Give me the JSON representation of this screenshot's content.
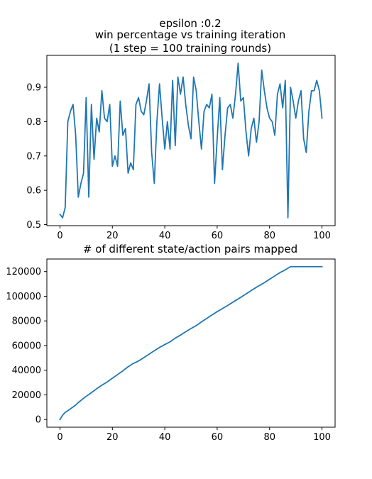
{
  "figure": {
    "title_lines": [
      "epsilon :0.2",
      "win percentage vs training iteration",
      "(1 step = 100 training rounds)"
    ]
  },
  "chart_data": [
    {
      "type": "line",
      "title": "win percentage vs training iteration",
      "xlabel": "",
      "ylabel": "",
      "xlim": [
        -5,
        105
      ],
      "ylim": [
        0.497,
        0.993
      ],
      "xticks": [
        0,
        20,
        40,
        60,
        80,
        100
      ],
      "xtick_labels": [
        "0",
        "20",
        "40",
        "60",
        "80",
        "100"
      ],
      "yticks": [
        0.5,
        0.6,
        0.7,
        0.8,
        0.9
      ],
      "ytick_labels": [
        "0.5",
        "0.6",
        "0.7",
        "0.8",
        "0.9"
      ],
      "grid": false,
      "color": "#1f77b4",
      "series": [
        {
          "x": [
            0,
            1,
            2,
            3,
            4,
            5,
            6,
            7,
            8,
            9,
            10,
            11,
            12,
            13,
            14,
            15,
            16,
            17,
            18,
            19,
            20,
            21,
            22,
            23,
            24,
            25,
            26,
            27,
            28,
            29,
            30,
            31,
            32,
            33,
            34,
            35,
            36,
            37,
            38,
            39,
            40,
            41,
            42,
            43,
            44,
            45,
            46,
            47,
            48,
            49,
            50,
            51,
            52,
            53,
            54,
            55,
            56,
            57,
            58,
            59,
            60,
            61,
            62,
            63,
            64,
            65,
            66,
            67,
            68,
            69,
            70,
            71,
            72,
            73,
            74,
            75,
            76,
            77,
            78,
            79,
            80,
            81,
            82,
            83,
            84,
            85,
            86,
            87,
            88,
            89,
            90,
            91,
            92,
            93,
            94,
            95,
            96,
            97,
            98,
            99,
            100
          ],
          "values": [
            0.53,
            0.52,
            0.55,
            0.8,
            0.83,
            0.85,
            0.76,
            0.58,
            0.62,
            0.65,
            0.87,
            0.58,
            0.85,
            0.69,
            0.81,
            0.77,
            0.89,
            0.81,
            0.8,
            0.85,
            0.67,
            0.7,
            0.67,
            0.86,
            0.76,
            0.78,
            0.65,
            0.68,
            0.66,
            0.85,
            0.87,
            0.83,
            0.82,
            0.86,
            0.91,
            0.71,
            0.62,
            0.8,
            0.91,
            0.81,
            0.72,
            0.8,
            0.72,
            0.92,
            0.73,
            0.93,
            0.88,
            0.93,
            0.85,
            0.79,
            0.75,
            0.93,
            0.89,
            0.8,
            0.72,
            0.83,
            0.85,
            0.84,
            0.88,
            0.62,
            0.75,
            0.87,
            0.66,
            0.76,
            0.84,
            0.85,
            0.81,
            0.88,
            0.97,
            0.86,
            0.87,
            0.77,
            0.7,
            0.78,
            0.81,
            0.74,
            0.8,
            0.95,
            0.89,
            0.84,
            0.81,
            0.8,
            0.76,
            0.88,
            0.91,
            0.84,
            0.92,
            0.52,
            0.9,
            0.86,
            0.81,
            0.86,
            0.89,
            0.75,
            0.71,
            0.83,
            0.89,
            0.89,
            0.92,
            0.89,
            0.81
          ]
        }
      ]
    },
    {
      "type": "line",
      "title": "# of different state/action pairs mapped",
      "xlabel": "",
      "ylabel": "",
      "xlim": [
        -5,
        105
      ],
      "ylim": [
        -6200,
        130200
      ],
      "xticks": [
        0,
        20,
        40,
        60,
        80,
        100
      ],
      "xtick_labels": [
        "0",
        "20",
        "40",
        "60",
        "80",
        "100"
      ],
      "yticks": [
        0,
        20000,
        40000,
        60000,
        80000,
        100000,
        120000
      ],
      "ytick_labels": [
        "0",
        "20000",
        "40000",
        "60000",
        "80000",
        "100000",
        "120000"
      ],
      "grid": false,
      "color": "#1f77b4",
      "series": [
        {
          "x": [
            0,
            1,
            2,
            3,
            4,
            5,
            6,
            7,
            8,
            9,
            10,
            12,
            14,
            16,
            18,
            20,
            22,
            24,
            26,
            28,
            30,
            32,
            34,
            36,
            38,
            40,
            42,
            44,
            46,
            48,
            50,
            52,
            54,
            56,
            58,
            60,
            62,
            64,
            66,
            68,
            70,
            72,
            74,
            76,
            78,
            80,
            82,
            84,
            86,
            88,
            90,
            92,
            94,
            96,
            98,
            100
          ],
          "values": [
            0,
            3500,
            5800,
            7200,
            8700,
            10200,
            11800,
            13800,
            15500,
            17200,
            18800,
            21800,
            25000,
            27800,
            30500,
            33500,
            36500,
            39500,
            42800,
            45500,
            47500,
            50200,
            53000,
            55800,
            58500,
            60800,
            63000,
            66000,
            68500,
            71200,
            73800,
            76200,
            79200,
            82000,
            84800,
            87500,
            90000,
            92500,
            95200,
            97800,
            100500,
            103200,
            106000,
            108600,
            111000,
            113800,
            116500,
            119200,
            121400,
            124000,
            124000,
            124000,
            124000,
            124000,
            124000,
            124000
          ]
        }
      ]
    }
  ]
}
